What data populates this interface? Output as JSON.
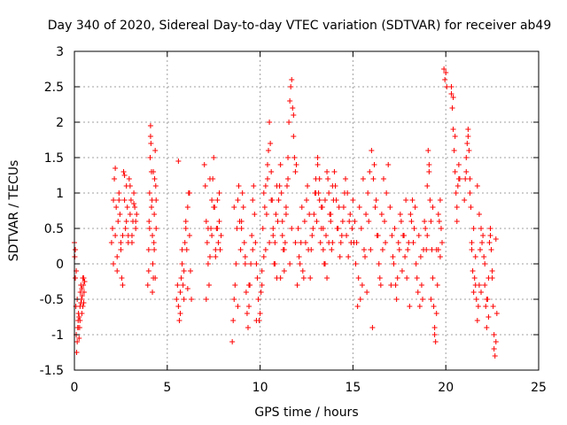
{
  "chart_data": {
    "type": "scatter",
    "title": "Day 340 of 2020, Sidereal Day-to-day VTEC variation (SDTVAR) for receiver ab49",
    "xlabel": "GPS time / hours",
    "ylabel": "SDTVAR / TECUs",
    "xlim": [
      0,
      25
    ],
    "ylim": [
      -1.5,
      3
    ],
    "xticks": [
      "0",
      "5",
      "10",
      "15",
      "20",
      "25"
    ],
    "yticks": [
      "-1.5",
      "-1",
      "-0.5",
      "0",
      "0.5",
      "1",
      "1.5",
      "2",
      "2.5",
      "3"
    ],
    "grid": true,
    "marker": "plus",
    "color": "#ff0000",
    "series": [
      {
        "name": "SDTVAR",
        "x": [
          0.0,
          0.02,
          0.05,
          0.08,
          0.1,
          0.12,
          0.15,
          0.18,
          0.2,
          0.22,
          0.25,
          0.28,
          0.3,
          0.32,
          0.35,
          0.38,
          0.4,
          0.42,
          0.45,
          0.48,
          0.5,
          0.52,
          0.55,
          0.05,
          0.1,
          0.15,
          0.2,
          0.25,
          0.3,
          0.35,
          0.4,
          0.45,
          0.5,
          2.0,
          2.05,
          2.1,
          2.15,
          2.2,
          2.25,
          2.3,
          2.35,
          2.4,
          2.45,
          2.5,
          2.55,
          2.6,
          2.65,
          2.7,
          2.75,
          2.8,
          2.85,
          2.9,
          2.95,
          3.0,
          3.05,
          3.1,
          3.15,
          3.2,
          3.25,
          3.3,
          3.35,
          2.1,
          2.2,
          2.3,
          2.4,
          2.5,
          2.6,
          2.7,
          2.8,
          2.9,
          3.0,
          3.1,
          3.2,
          3.3,
          3.95,
          4.0,
          4.02,
          4.05,
          4.08,
          4.1,
          4.12,
          4.15,
          4.18,
          4.2,
          4.22,
          4.25,
          4.28,
          4.3,
          4.32,
          4.35,
          4.38,
          4.4,
          4.0,
          4.05,
          4.1,
          4.15,
          4.2,
          4.25,
          4.3,
          4.35,
          4.4,
          5.5,
          5.55,
          5.6,
          5.65,
          5.7,
          5.75,
          5.8,
          5.85,
          5.9,
          5.95,
          6.0,
          6.05,
          6.1,
          6.15,
          6.2,
          6.25,
          6.3,
          5.6,
          5.7,
          5.8,
          5.9,
          6.0,
          6.1,
          6.2,
          7.0,
          7.05,
          7.1,
          7.15,
          7.2,
          7.25,
          7.3,
          7.35,
          7.4,
          7.45,
          7.5,
          7.55,
          7.6,
          7.65,
          7.7,
          7.75,
          7.8,
          7.85,
          7.9,
          7.1,
          7.2,
          7.3,
          7.4,
          7.5,
          7.6,
          7.7,
          7.8,
          8.5,
          8.55,
          8.6,
          8.65,
          8.7,
          8.75,
          8.8,
          8.85,
          8.9,
          8.95,
          9.0,
          9.05,
          9.1,
          9.15,
          9.2,
          9.25,
          9.3,
          9.35,
          9.4,
          9.45,
          9.5,
          9.55,
          9.6,
          9.65,
          9.7,
          9.75,
          9.8,
          9.85,
          9.9,
          9.95,
          8.6,
          8.8,
          9.0,
          9.2,
          9.4,
          9.6,
          9.8,
          10.0,
          10.05,
          10.1,
          10.15,
          10.2,
          10.25,
          10.3,
          10.35,
          10.4,
          10.45,
          10.5,
          10.55,
          10.6,
          10.65,
          10.7,
          10.75,
          10.8,
          10.85,
          10.9,
          10.95,
          10.1,
          10.2,
          10.3,
          10.4,
          10.5,
          10.6,
          10.7,
          10.8,
          10.9,
          11.0,
          11.05,
          11.1,
          11.15,
          11.2,
          11.25,
          11.3,
          11.35,
          11.4,
          11.45,
          11.5,
          11.55,
          11.6,
          11.65,
          11.7,
          11.75,
          11.8,
          11.85,
          11.9,
          11.95,
          11.1,
          11.2,
          11.3,
          11.4,
          11.5,
          11.6,
          11.7,
          11.8,
          11.9,
          12.0,
          12.1,
          12.2,
          12.3,
          12.4,
          12.5,
          12.6,
          12.7,
          12.8,
          12.9,
          13.0,
          13.1,
          13.2,
          13.3,
          13.4,
          13.5,
          13.6,
          13.7,
          13.8,
          13.9,
          12.05,
          12.15,
          12.25,
          12.35,
          12.45,
          12.55,
          12.65,
          12.75,
          12.85,
          12.95,
          13.0,
          13.1,
          13.2,
          13.3,
          13.4,
          13.5,
          13.6,
          13.7,
          13.8,
          13.9,
          14.0,
          14.1,
          14.2,
          14.3,
          14.4,
          14.5,
          14.6,
          14.7,
          14.8,
          14.9,
          13.05,
          13.15,
          13.25,
          13.35,
          13.45,
          13.55,
          13.65,
          13.75,
          13.85,
          13.95,
          14.05,
          14.15,
          14.25,
          14.35,
          14.45,
          14.55,
          14.65,
          14.75,
          14.85,
          14.95,
          15.0,
          15.1,
          15.2,
          15.3,
          15.4,
          15.5,
          15.6,
          15.7,
          15.8,
          15.9,
          16.0,
          16.1,
          16.2,
          16.3,
          16.4,
          16.5,
          16.6,
          16.7,
          16.8,
          16.9,
          15.05,
          15.15,
          15.25,
          15.35,
          15.45,
          15.55,
          15.65,
          15.75,
          15.85,
          15.95,
          16.05,
          16.15,
          16.25,
          16.35,
          16.45,
          16.55,
          16.65,
          16.75,
          17.0,
          17.1,
          17.2,
          17.3,
          17.4,
          17.5,
          17.6,
          17.7,
          17.8,
          17.9,
          18.0,
          18.1,
          18.2,
          18.3,
          18.4,
          18.5,
          18.6,
          18.7,
          18.8,
          18.9,
          17.05,
          17.15,
          17.25,
          17.35,
          17.45,
          17.55,
          17.65,
          17.75,
          17.85,
          17.95,
          18.05,
          18.15,
          18.25,
          18.35,
          18.45,
          18.55,
          18.65,
          18.75,
          18.85,
          18.95,
          19.0,
          19.05,
          19.1,
          19.15,
          19.2,
          19.25,
          19.3,
          19.35,
          19.4,
          19.45,
          19.5,
          19.55,
          19.6,
          19.65,
          19.7,
          19.75,
          19.8,
          19.0,
          19.1,
          19.2,
          19.3,
          19.4,
          19.5,
          19.6,
          19.7,
          19.9,
          19.95,
          20.0,
          20.05,
          20.3,
          20.35,
          20.4,
          20.45,
          20.5,
          20.55,
          20.6,
          20.65,
          20.7,
          20.75,
          20.3,
          20.4,
          20.5,
          20.6,
          20.7,
          21.0,
          21.05,
          21.1,
          21.15,
          21.2,
          21.25,
          21.3,
          21.35,
          21.4,
          21.45,
          21.5,
          21.55,
          21.6,
          21.65,
          21.7,
          21.75,
          21.8,
          21.85,
          21.9,
          21.95,
          21.1,
          21.2,
          21.3,
          21.4,
          21.5,
          21.6,
          21.7,
          21.8,
          21.9,
          22.0,
          22.05,
          22.1,
          22.15,
          22.2,
          22.25,
          22.3,
          22.35,
          22.4,
          22.45,
          22.5,
          22.55,
          22.6,
          22.65,
          22.7,
          22.75,
          22.1,
          22.2,
          22.3,
          22.4,
          22.5,
          22.6,
          22.7
        ],
        "y": [
          0.3,
          0.1,
          -0.2,
          -0.6,
          -1.0,
          -1.25,
          -1.1,
          -0.9,
          -0.8,
          -0.7,
          -0.75,
          -0.9,
          -0.6,
          -0.4,
          -0.3,
          -0.5,
          -0.7,
          -0.45,
          -0.2,
          -0.3,
          -0.55,
          -0.4,
          -0.25,
          0.2,
          -0.1,
          -0.5,
          -0.9,
          -1.05,
          -0.8,
          -0.55,
          -0.35,
          -0.6,
          -0.2,
          0.3,
          0.5,
          0.9,
          1.2,
          1.35,
          0.8,
          0.1,
          0.6,
          1.0,
          0.7,
          0.3,
          -0.2,
          0.4,
          1.3,
          0.9,
          0.5,
          1.1,
          0.8,
          0.4,
          1.2,
          0.7,
          0.9,
          0.3,
          0.6,
          1.0,
          0.8,
          0.5,
          0.7,
          0.0,
          0.4,
          -0.1,
          0.9,
          0.2,
          -0.3,
          1.25,
          0.6,
          0.3,
          1.1,
          0.4,
          0.85,
          0.6,
          -0.3,
          0.2,
          0.6,
          1.0,
          1.5,
          1.95,
          1.7,
          1.3,
          0.9,
          0.4,
          0.0,
          -0.2,
          0.3,
          0.7,
          1.2,
          1.6,
          1.1,
          0.5,
          -0.1,
          0.5,
          1.8,
          0.8,
          -0.4,
          1.3,
          0.2,
          -0.2,
          0.9,
          -0.5,
          -0.3,
          -0.6,
          -0.8,
          -0.4,
          -0.2,
          0.0,
          -0.3,
          -0.5,
          0.3,
          0.6,
          0.2,
          0.8,
          1.0,
          0.4,
          -0.1,
          -0.5,
          1.45,
          -0.7,
          0.2,
          -0.1,
          0.5,
          -0.35,
          1.0,
          1.4,
          1.1,
          0.6,
          0.3,
          0.0,
          -0.3,
          0.1,
          0.5,
          0.9,
          1.2,
          1.5,
          0.8,
          0.2,
          0.5,
          0.9,
          0.3,
          0.6,
          0.2,
          0.4,
          -0.5,
          0.5,
          1.2,
          0.4,
          0.8,
          0.1,
          0.5,
          1.0,
          -1.1,
          -0.8,
          -0.5,
          -0.3,
          0.0,
          0.5,
          0.9,
          1.1,
          0.6,
          0.2,
          0.5,
          1.0,
          0.8,
          0.3,
          0.0,
          -0.4,
          -0.7,
          -0.9,
          -0.6,
          -0.3,
          0.0,
          0.4,
          0.9,
          1.1,
          0.7,
          0.3,
          0.0,
          -0.2,
          -0.5,
          -0.8,
          0.8,
          -0.6,
          0.6,
          0.1,
          -0.3,
          0.2,
          -0.8,
          -0.7,
          -0.4,
          -0.1,
          0.5,
          1.0,
          0.8,
          0.2,
          0.7,
          1.2,
          1.6,
          2.0,
          1.7,
          1.3,
          0.9,
          0.4,
          0.0,
          0.3,
          0.7,
          1.1,
          0.6,
          -0.3,
          0.1,
          1.1,
          1.4,
          0.3,
          0.9,
          0.5,
          0.0,
          -0.2,
          0.9,
          1.1,
          1.4,
          1.0,
          0.6,
          0.2,
          -0.1,
          0.3,
          0.7,
          1.1,
          1.5,
          2.0,
          2.3,
          2.5,
          2.6,
          2.2,
          1.8,
          1.5,
          1.3,
          1.4,
          -0.2,
          0.4,
          0.2,
          0.8,
          1.2,
          0.0,
          0.5,
          2.1,
          0.3,
          -0.3,
          0.1,
          0.3,
          -0.1,
          0.6,
          0.9,
          0.2,
          -0.2,
          0.4,
          0.7,
          1.0,
          1.4,
          1.2,
          0.8,
          0.5,
          0.9,
          1.3,
          1.0,
          0.6,
          0.3,
          0.5,
          0.0,
          0.8,
          -0.2,
          0.3,
          1.1,
          0.7,
          0.2,
          0.5,
          1.0,
          1.2,
          1.5,
          0.9,
          0.5,
          0.2,
          0.0,
          -0.2,
          0.3,
          0.7,
          1.1,
          1.3,
          0.9,
          0.5,
          0.1,
          0.4,
          0.8,
          1.2,
          1.0,
          0.6,
          0.3,
          0.6,
          1.0,
          0.3,
          0.8,
          0.0,
          0.4,
          1.2,
          0.7,
          0.2,
          0.9,
          1.1,
          0.5,
          0.8,
          0.3,
          0.6,
          1.0,
          0.4,
          0.1,
          0.7,
          0.5,
          0.9,
          0.6,
          0.3,
          -0.2,
          -0.5,
          -0.3,
          0.2,
          0.7,
          1.0,
          1.3,
          1.6,
          1.2,
          0.8,
          0.4,
          0.0,
          -0.3,
          0.2,
          0.6,
          1.0,
          1.4,
          0.3,
          0.0,
          -0.6,
          0.8,
          0.5,
          1.2,
          0.1,
          -0.4,
          0.6,
          0.2,
          -0.9,
          1.4,
          0.9,
          0.4,
          -0.2,
          0.7,
          1.2,
          0.3,
          0.8,
          0.4,
          0.0,
          -0.3,
          -0.2,
          0.2,
          0.6,
          0.4,
          0.1,
          -0.2,
          0.3,
          0.7,
          0.9,
          0.5,
          0.0,
          -0.4,
          -0.6,
          -0.3,
          0.2,
          0.5,
          -0.3,
          0.1,
          0.5,
          -0.5,
          0.3,
          0.7,
          -0.1,
          0.4,
          0.9,
          0.2,
          -0.6,
          0.6,
          0.3,
          0.8,
          -0.2,
          0.4,
          0.1,
          -0.5,
          0.6,
          0.2,
          1.1,
          1.6,
          1.3,
          0.9,
          0.6,
          0.2,
          -0.2,
          -0.6,
          -1.0,
          -1.1,
          -0.7,
          -0.3,
          0.2,
          0.6,
          0.9,
          0.5,
          0.3,
          0.4,
          1.4,
          -0.5,
          0.8,
          -0.9,
          0.2,
          0.7,
          0.1,
          2.75,
          2.6,
          2.7,
          2.5,
          2.4,
          2.2,
          1.9,
          1.6,
          1.3,
          1.0,
          0.8,
          1.1,
          1.4,
          1.2,
          2.5,
          2.35,
          1.8,
          0.6,
          1.2,
          0.9,
          1.2,
          1.5,
          1.7,
          1.9,
          1.6,
          1.2,
          0.8,
          0.3,
          -0.1,
          -0.4,
          -0.2,
          0.1,
          -0.5,
          -0.8,
          -0.6,
          -0.3,
          0.2,
          0.5,
          0.3,
          1.3,
          1.8,
          1.0,
          0.2,
          0.5,
          -0.3,
          1.1,
          0.7,
          -0.4,
          0.4,
          0.1,
          -0.3,
          -0.6,
          -0.9,
          -0.5,
          -0.2,
          0.3,
          0.5,
          0.2,
          -0.1,
          -0.6,
          -1.0,
          -1.3,
          -1.1,
          -0.7,
          0.0,
          -0.5,
          -0.75,
          0.4,
          -0.2,
          -1.2,
          0.35
        ]
      }
    ]
  }
}
